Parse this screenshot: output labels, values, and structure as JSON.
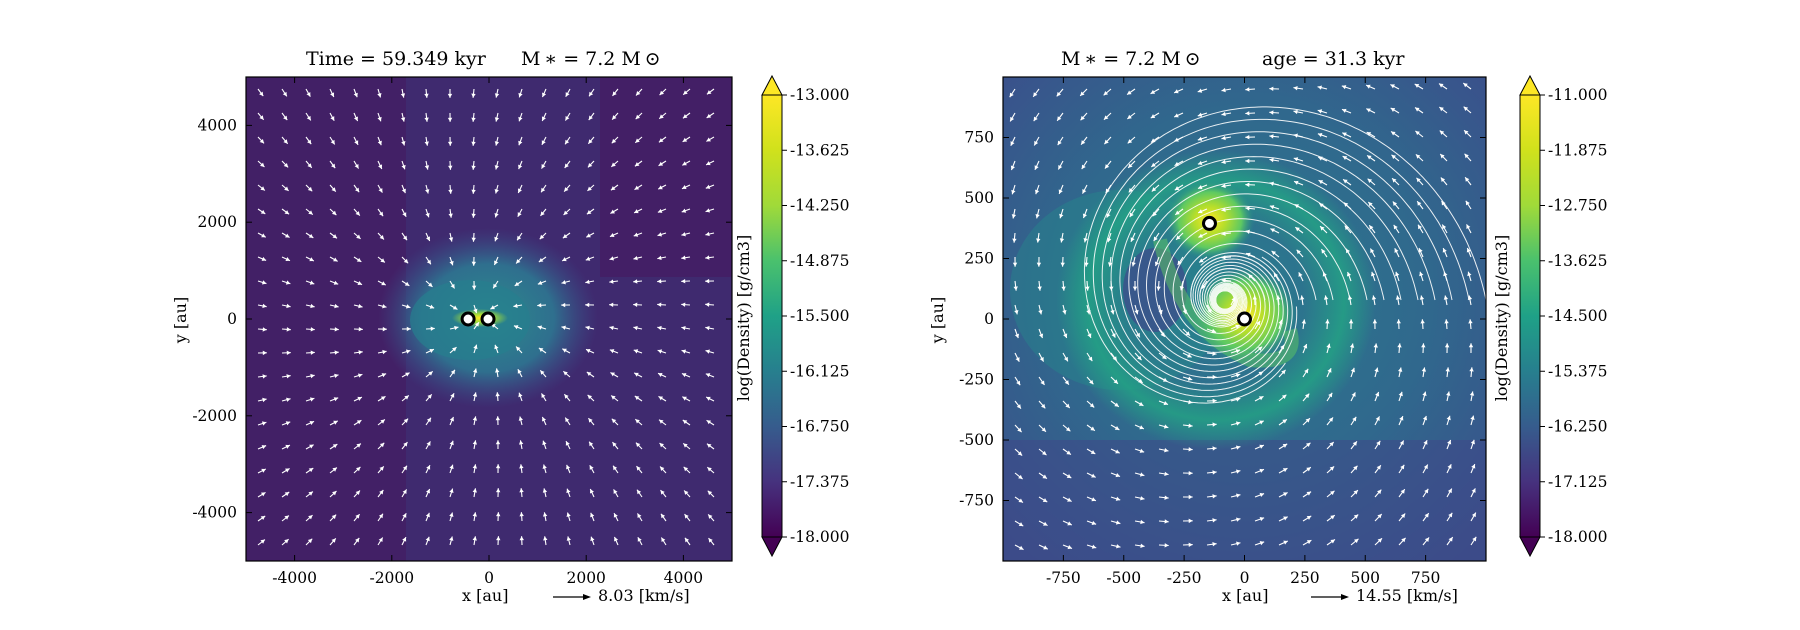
{
  "chart_data": [
    {
      "type": "heatmap",
      "title_left": "Time = 59.349 kyr",
      "title_right": "M ∗ = 7.2 M ⊙",
      "xlabel": "x [au]",
      "ylabel": "y [au]",
      "xlim": [
        -5000,
        5000
      ],
      "ylim": [
        -5000,
        5000
      ],
      "x_ticks": [
        -4000,
        -2000,
        0,
        2000,
        4000
      ],
      "y_ticks": [
        -4000,
        -2000,
        0,
        2000,
        4000
      ],
      "x_tick_labels": [
        "-4000",
        "-2000",
        "0",
        "2000",
        "4000"
      ],
      "y_tick_labels": [
        "-4000",
        "-2000",
        "0",
        "2000",
        "4000"
      ],
      "velocity_key": "8.03 [km/s]",
      "colorbar": {
        "label": "log(Density) [g/cm3]",
        "min": -18.0,
        "max": -13.0,
        "extend": "both",
        "ticks": [
          "-13.000",
          "-13.625",
          "-14.250",
          "-14.875",
          "-15.500",
          "-16.125",
          "-16.750",
          "-17.375",
          "-18.000"
        ]
      },
      "sinks": [
        {
          "x": -430,
          "y": 0
        },
        {
          "x": -20,
          "y": 0
        }
      ]
    },
    {
      "type": "heatmap",
      "title_left": "M ∗ = 7.2 M ⊙",
      "title_right": "age = 31.3 kyr",
      "xlabel": "x [au]",
      "ylabel": "y [au]",
      "xlim": [
        -1000,
        1000
      ],
      "ylim": [
        -1000,
        1000
      ],
      "x_ticks": [
        -750,
        -500,
        -250,
        0,
        250,
        500,
        750
      ],
      "y_ticks": [
        -750,
        -500,
        -250,
        0,
        250,
        500,
        750
      ],
      "x_tick_labels": [
        "-750",
        "-500",
        "-250",
        "0",
        "250",
        "500",
        "750"
      ],
      "y_tick_labels": [
        "-750",
        "-500",
        "-250",
        "0",
        "250",
        "500",
        "750"
      ],
      "velocity_key": "14.55 [km/s]",
      "colorbar": {
        "label": "log(Density) [g/cm3]",
        "min": -18.0,
        "max": -11.0,
        "extend": "both",
        "ticks": [
          "-11.000",
          "-11.875",
          "-12.750",
          "-13.625",
          "-14.500",
          "-15.375",
          "-16.250",
          "-17.125",
          "-18.000"
        ]
      },
      "sinks": [
        {
          "x": -145,
          "y": 395
        },
        {
          "x": 0,
          "y": 0
        }
      ]
    }
  ]
}
